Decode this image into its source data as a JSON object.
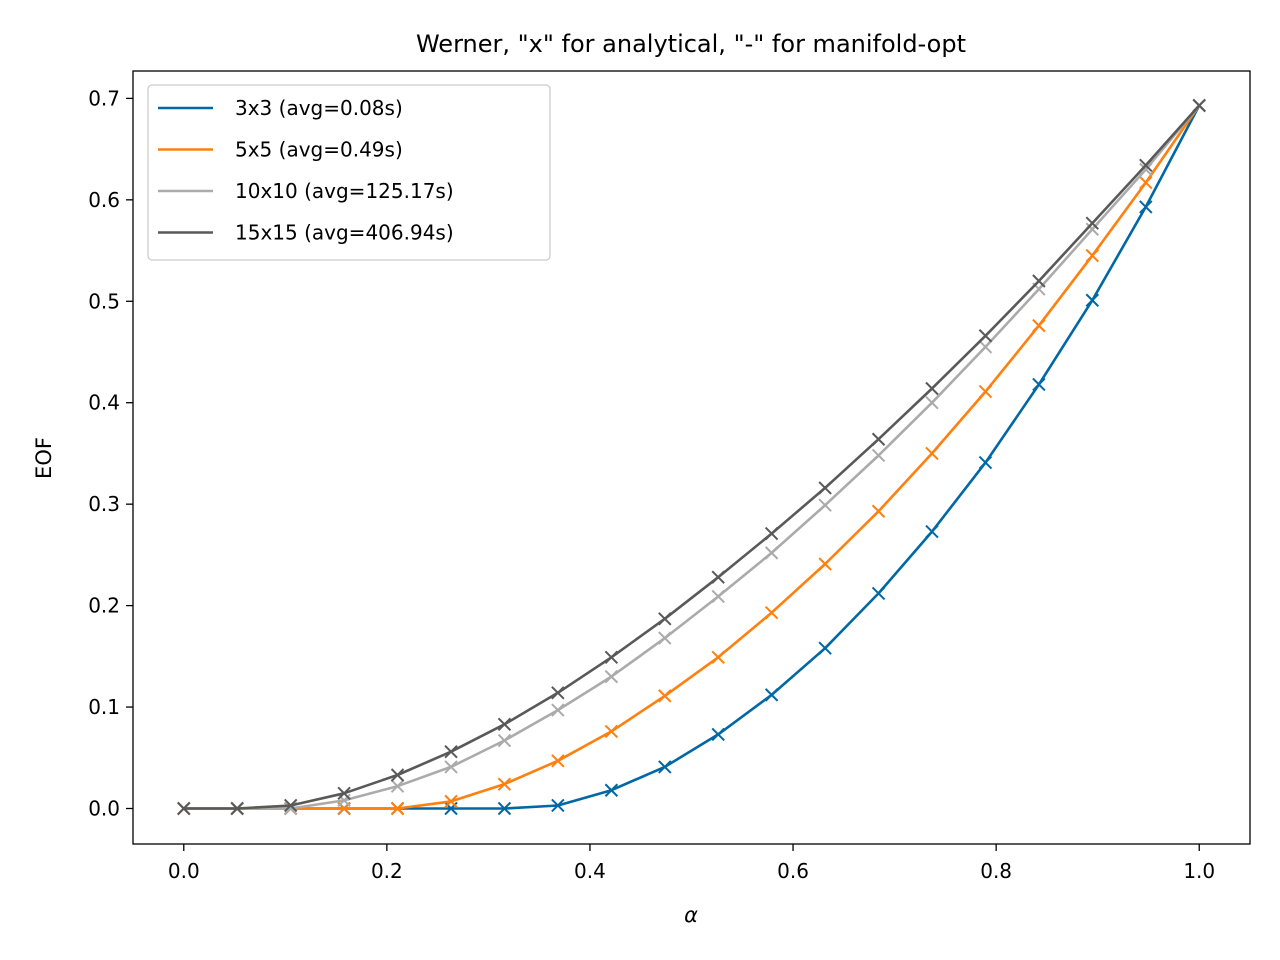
{
  "chart_data": {
    "type": "line",
    "title": "Werner, \"x\" for analytical, \"-\" for manifold-opt",
    "xlabel": "α",
    "ylabel": "EOF",
    "xlim": [
      -0.05,
      1.05
    ],
    "ylim": [
      -0.035,
      0.727
    ],
    "xticks": [
      0.0,
      0.2,
      0.4,
      0.6,
      0.8,
      1.0
    ],
    "xtick_labels": [
      "0.0",
      "0.2",
      "0.4",
      "0.6",
      "0.8",
      "1.0"
    ],
    "yticks": [
      0.0,
      0.1,
      0.2,
      0.3,
      0.4,
      0.5,
      0.6,
      0.7
    ],
    "ytick_labels": [
      "0.0",
      "0.1",
      "0.2",
      "0.3",
      "0.4",
      "0.5",
      "0.6",
      "0.7"
    ],
    "grid": false,
    "legend_position": "top-left",
    "x": [
      0.0,
      0.0526,
      0.1053,
      0.1579,
      0.2105,
      0.2632,
      0.3158,
      0.3684,
      0.4211,
      0.4737,
      0.5263,
      0.5789,
      0.6316,
      0.6842,
      0.7368,
      0.7895,
      0.8421,
      0.8947,
      0.9474,
      1.0
    ],
    "series": [
      {
        "name": "3x3 (avg=0.08s)",
        "color": "#0068a5",
        "marker": "x",
        "values": [
          0.0,
          0.0,
          0.0,
          0.0,
          0.0,
          0.0,
          0.0,
          0.003,
          0.018,
          0.041,
          0.073,
          0.112,
          0.158,
          0.212,
          0.273,
          0.341,
          0.418,
          0.501,
          0.593,
          0.693
        ]
      },
      {
        "name": "5x5 (avg=0.49s)",
        "color": "#ff800e",
        "marker": "x",
        "values": [
          0.0,
          0.0,
          0.0,
          0.0,
          0.0,
          0.007,
          0.024,
          0.047,
          0.076,
          0.111,
          0.149,
          0.193,
          0.241,
          0.293,
          0.35,
          0.411,
          0.476,
          0.545,
          0.617,
          0.693
        ]
      },
      {
        "name": "10x10 (avg=125.17s)",
        "color": "#ababab",
        "marker": "x",
        "values": [
          0.0,
          0.0,
          0.0,
          0.008,
          0.022,
          0.041,
          0.067,
          0.097,
          0.13,
          0.168,
          0.209,
          0.252,
          0.299,
          0.348,
          0.4,
          0.455,
          0.512,
          0.571,
          0.63,
          0.693
        ]
      },
      {
        "name": "15x15 (avg=406.94s)",
        "color": "#595959",
        "marker": "x",
        "values": [
          0.0,
          0.0,
          0.003,
          0.015,
          0.033,
          0.056,
          0.083,
          0.114,
          0.149,
          0.187,
          0.228,
          0.271,
          0.316,
          0.364,
          0.414,
          0.466,
          0.52,
          0.577,
          0.634,
          0.693
        ]
      }
    ]
  }
}
